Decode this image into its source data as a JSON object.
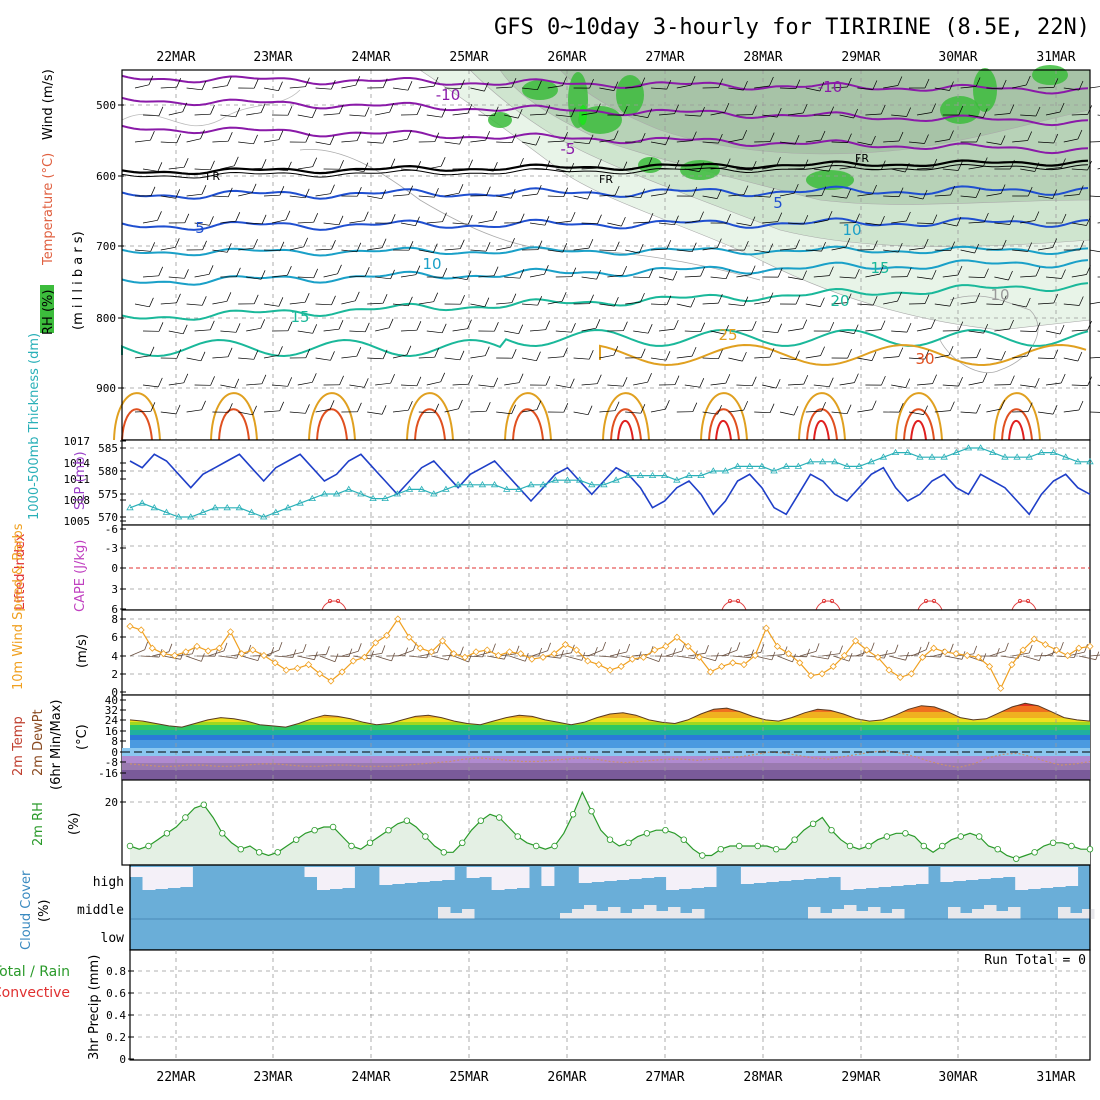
{
  "title": "GFS 0~10day 3-hourly for TIRIRINE (8.5E, 22N)",
  "dates": [
    "22MAR",
    "23MAR",
    "24MAR",
    "25MAR",
    "26MAR",
    "27MAR",
    "28MAR",
    "29MAR",
    "30MAR",
    "31MAR"
  ],
  "colors": {
    "temp_neg": "#8a1aa8",
    "temp_low": "#1f4fd0",
    "temp_mid": "#1aa0c8",
    "temp_warm": "#1ab89a",
    "temp_hot": "#e0a020",
    "temp_vhot": "#e05020",
    "rh_green": "#3cbc3c",
    "slp": "#1f3fc8",
    "thickness": "#2ab0b8",
    "wind": "#f0a020",
    "rh2m": "#2a9a2a",
    "cloud": "#6aaed8"
  },
  "panels": {
    "upper": {
      "label_rh": "RH (%)",
      "label_temp": "Temperature (°C)",
      "label_wind": "Wind (m/s)",
      "label_mb": "(m i l l i b a r s)",
      "yticks": [
        "500",
        "600",
        "700",
        "800",
        "900"
      ],
      "contour_labels": [
        "-10",
        "-10",
        "-5",
        "FR",
        "FR",
        "FR",
        "5",
        "5",
        "10",
        "10",
        "15",
        "15",
        "20",
        "25",
        "30",
        "10"
      ],
      "chart_data": {
        "type": "heatmap",
        "levels_mb": [
          500,
          600,
          700,
          800,
          900
        ],
        "fields": [
          "RH",
          "Temperature",
          "Wind"
        ]
      }
    },
    "pressure": {
      "label_thick": "1000-500mb Thickness (dm)",
      "label_slp": "SLP (mb)",
      "left_ticks": [
        "585",
        "580",
        "575",
        "570"
      ],
      "right_ticks": [
        "1017",
        "1014",
        "1011",
        "1008",
        "1005"
      ],
      "chart_data": {
        "type": "line",
        "series": [
          {
            "name": "SLP (mb)",
            "values": [
              1014,
              1013,
              1015,
              1014,
              1012,
              1010,
              1012,
              1013,
              1014,
              1015,
              1013,
              1011,
              1013,
              1014,
              1015,
              1013,
              1011,
              1012,
              1014,
              1015,
              1013,
              1011,
              1009,
              1011,
              1013,
              1014,
              1012,
              1010,
              1012,
              1013,
              1014,
              1012,
              1010,
              1008,
              1010,
              1012,
              1013,
              1011,
              1009,
              1011,
              1013,
              1012,
              1010,
              1007,
              1008,
              1010,
              1011,
              1009,
              1006,
              1008,
              1011,
              1012,
              1010,
              1007,
              1006,
              1009,
              1012,
              1011,
              1009,
              1008,
              1010,
              1012,
              1013,
              1010,
              1008,
              1009,
              1011,
              1012,
              1010,
              1009,
              1012,
              1011,
              1010,
              1008,
              1006,
              1009,
              1011,
              1012,
              1010,
              1009
            ]
          },
          {
            "name": "1000-500mb Thickness (dm)",
            "values": [
              572,
              573,
              572,
              571,
              570,
              570,
              571,
              572,
              572,
              572,
              571,
              570,
              571,
              572,
              573,
              574,
              575,
              575,
              576,
              575,
              574,
              574,
              575,
              576,
              576,
              575,
              576,
              577,
              577,
              577,
              577,
              576,
              576,
              577,
              577,
              578,
              578,
              578,
              577,
              577,
              578,
              579,
              579,
              579,
              579,
              578,
              579,
              579,
              580,
              580,
              581,
              581,
              581,
              580,
              581,
              581,
              582,
              582,
              582,
              581,
              581,
              582,
              583,
              584,
              584,
              583,
              583,
              583,
              584,
              585,
              585,
              584,
              583,
              583,
              583,
              584,
              584,
              583,
              582,
              582
            ]
          }
        ]
      }
    },
    "stability": {
      "label_li": "Lifted Index",
      "label_cape": "CAPE (J/kg)",
      "yticks": [
        "-6",
        "-3",
        "0",
        "3",
        "6"
      ]
    },
    "wind10m": {
      "label": "10m Wind Speed & Barbs",
      "unit": "(m/s)",
      "yticks": [
        "8",
        "6",
        "4",
        "2",
        "0"
      ],
      "chart_data": {
        "type": "line",
        "series": [
          {
            "name": "Speed",
            "values": [
              7.2,
              6.8,
              4.8,
              4.2,
              4.0,
              4.4,
              5.0,
              4.5,
              4.8,
              6.6,
              4.2,
              4.6,
              4.0,
              3.2,
              2.4,
              2.6,
              3.0,
              2.0,
              1.2,
              2.2,
              3.4,
              3.8,
              5.4,
              6.2,
              8.0,
              6.0,
              4.8,
              4.4,
              5.6,
              4.2,
              3.8,
              4.4,
              4.6,
              4.0,
              4.4,
              4.2,
              3.6,
              3.8,
              4.2,
              5.2,
              4.6,
              3.4,
              3.0,
              2.4,
              2.8,
              3.6,
              3.8,
              4.6,
              5.0,
              6.0,
              5.0,
              3.8,
              2.2,
              2.8,
              3.2,
              3.0,
              4.0,
              7.0,
              5.0,
              4.2,
              3.2,
              1.8,
              2.0,
              2.8,
              4.0,
              5.6,
              4.6,
              3.8,
              2.4,
              1.6,
              2.0,
              3.8,
              4.8,
              4.4,
              4.2,
              4.0,
              3.8,
              2.8,
              0.4,
              3.0,
              4.6,
              5.8,
              5.2,
              4.6,
              4.0,
              4.8,
              5.0
            ]
          }
        ]
      }
    },
    "temp2m": {
      "label_temp": "2m Temp",
      "label_dew": "2m DewPt",
      "label_minmax": "(6hr Min/Max)",
      "unit": "(°C)",
      "yticks": [
        "40",
        "32",
        "24",
        "16",
        "8",
        "0",
        "-8",
        "-16"
      ],
      "chart_data": {
        "type": "area",
        "series": [
          {
            "name": "2m Temp",
            "values": [
              27,
              26,
              24,
              22,
              21,
              24,
              27,
              29,
              28,
              26,
              23,
              22,
              21,
              24,
              28,
              31,
              30,
              28,
              25,
              23,
              24,
              27,
              30,
              31,
              29,
              26,
              24,
              23,
              26,
              29,
              31,
              30,
              27,
              25,
              23,
              25,
              29,
              32,
              33,
              31,
              27,
              25,
              24,
              27,
              32,
              36,
              37,
              34,
              30,
              27,
              26,
              29,
              33,
              36,
              35,
              32,
              28,
              26,
              27,
              31,
              36,
              39,
              38,
              34,
              29,
              27,
              28,
              33,
              38,
              41,
              39,
              34,
              29,
              27,
              26
            ]
          },
          {
            "name": "2m DewPt",
            "values": [
              -10,
              -11,
              -12,
              -12,
              -11,
              -11,
              -12,
              -12,
              -11,
              -10,
              -10,
              -11,
              -12,
              -12,
              -11,
              -11,
              -12,
              -12,
              -12,
              -11,
              -10,
              -9,
              -8,
              -6,
              -5,
              -6,
              -7,
              -8,
              -8,
              -7,
              -6,
              -5,
              -6,
              -8,
              -9,
              -8,
              -7,
              -6,
              -6,
              -7,
              -6,
              -5,
              -4,
              -2,
              0,
              -1,
              -3,
              -5,
              -6,
              -4,
              -2,
              0,
              1,
              -1,
              -4,
              -8,
              -11,
              -13,
              -10,
              -5,
              -2,
              -1,
              -4,
              -8,
              -11,
              -10,
              -8
            ]
          }
        ]
      }
    },
    "rh2m": {
      "label": "2m RH",
      "unit": "(%)",
      "yticks": [
        "20"
      ],
      "chart_data": {
        "type": "line",
        "series": [
          {
            "name": "2m RH",
            "values": [
              6,
              5,
              6,
              8,
              10,
              12,
              15,
              18,
              19,
              15,
              10,
              7,
              5,
              6,
              4,
              3,
              4,
              6,
              8,
              10,
              11,
              12,
              12,
              9,
              6,
              5,
              7,
              9,
              11,
              13,
              14,
              12,
              9,
              6,
              4,
              4,
              7,
              11,
              14,
              16,
              15,
              12,
              9,
              7,
              6,
              5,
              6,
              10,
              16,
              23,
              17,
              11,
              8,
              6,
              7,
              9,
              10,
              11,
              11,
              10,
              8,
              5,
              3,
              3,
              5,
              6,
              6,
              6,
              6,
              6,
              5,
              5,
              8,
              11,
              13,
              15,
              11,
              8,
              6,
              5,
              6,
              8,
              9,
              10,
              10,
              9,
              6,
              4,
              6,
              8,
              9,
              10,
              9,
              6,
              5,
              3,
              2,
              3,
              4,
              6,
              7,
              7,
              6,
              5,
              5
            ]
          }
        ]
      }
    },
    "cloud": {
      "label": "Cloud Cover",
      "unit": "(%)",
      "levels": [
        "high",
        "middle",
        "low"
      ]
    },
    "precip": {
      "label_total": "Total / Rain",
      "label_conv": "Convective",
      "label_axis": "3hr Precip (mm)",
      "run_total": "Run Total = 0",
      "yticks": [
        "0.8",
        "0.6",
        "0.4",
        "0.2",
        "0"
      ],
      "chart_data": {
        "type": "bar",
        "values": [],
        "ylim": [
          0,
          1
        ]
      }
    }
  }
}
